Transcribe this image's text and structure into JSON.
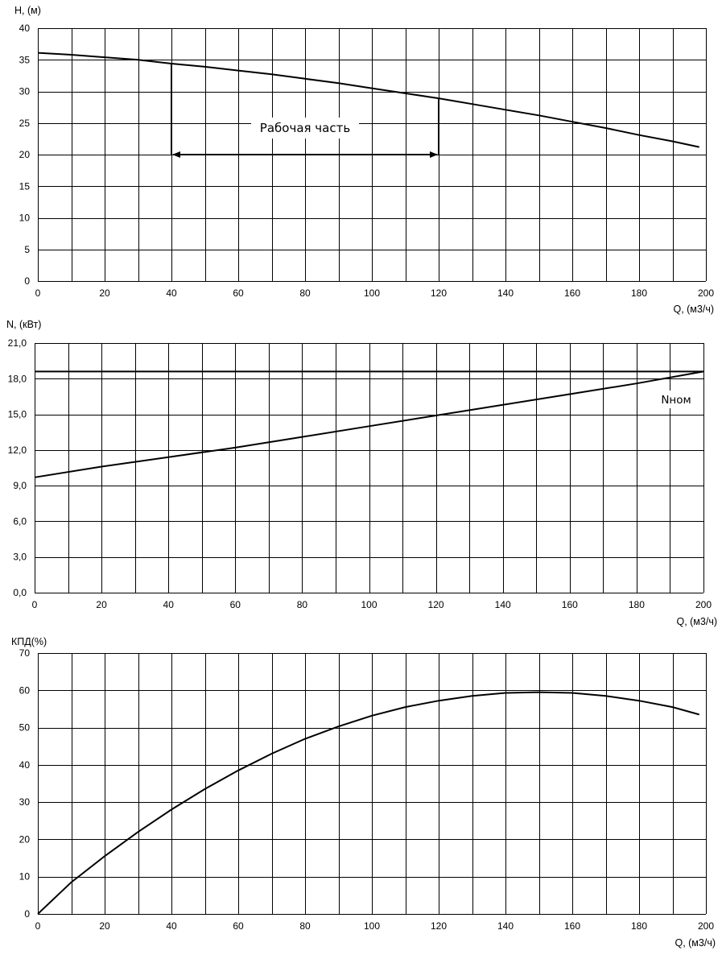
{
  "chart_data": [
    {
      "type": "line",
      "ylabel": "H, (м)",
      "xlabel": "Q, (м3/ч)",
      "xlim": [
        0,
        200
      ],
      "ylim": [
        0,
        40
      ],
      "xticks": [
        "0",
        "20",
        "40",
        "60",
        "80",
        "100",
        "120",
        "140",
        "160",
        "180",
        "200"
      ],
      "yticks": [
        "0",
        "5",
        "10",
        "15",
        "20",
        "25",
        "30",
        "35",
        "40"
      ],
      "grid": true,
      "series": [
        {
          "x": [
            0,
            10,
            20,
            30,
            40,
            50,
            60,
            70,
            80,
            90,
            100,
            110,
            120,
            130,
            140,
            150,
            160,
            170,
            180,
            190,
            198
          ],
          "y": [
            36.1,
            35.8,
            35.4,
            35.0,
            34.4,
            33.9,
            33.3,
            32.7,
            32.0,
            31.3,
            30.5,
            29.7,
            28.9,
            28.0,
            27.1,
            26.2,
            25.2,
            24.2,
            23.1,
            22.1,
            21.2
          ]
        }
      ],
      "annotations": {
        "working_range_label": "Рабочая часть",
        "working_range_q": [
          40,
          120
        ],
        "working_range_h_arrow": 20
      }
    },
    {
      "type": "line",
      "ylabel": "N, (кВт)",
      "xlabel": "Q, (м3/ч)",
      "xlim": [
        0,
        200
      ],
      "ylim": [
        0,
        21
      ],
      "xticks": [
        "0",
        "20",
        "40",
        "60",
        "80",
        "100",
        "120",
        "140",
        "160",
        "180",
        "200"
      ],
      "yticks": [
        "0,0",
        "3,0",
        "6,0",
        "9,0",
        "12,0",
        "15,0",
        "18,0",
        "21,0"
      ],
      "grid": true,
      "series": [
        {
          "x": [
            0,
            20,
            40,
            60,
            80,
            100,
            120,
            140,
            160,
            180,
            200
          ],
          "y": [
            9.7,
            10.6,
            11.4,
            12.2,
            13.1,
            14.0,
            14.9,
            15.8,
            16.7,
            17.6,
            18.6
          ]
        }
      ],
      "annotations": {
        "nominal_label": "Nном",
        "nominal_value": 18.6
      }
    },
    {
      "type": "line",
      "ylabel": "КПД(%)",
      "xlabel": "Q, (м3/ч)",
      "xlim": [
        0,
        200
      ],
      "ylim": [
        0,
        70
      ],
      "xticks": [
        "0",
        "20",
        "40",
        "60",
        "80",
        "100",
        "120",
        "140",
        "160",
        "180",
        "200"
      ],
      "yticks": [
        "0",
        "10",
        "20",
        "30",
        "40",
        "50",
        "60",
        "70"
      ],
      "grid": true,
      "series": [
        {
          "x": [
            0,
            10,
            20,
            30,
            40,
            50,
            60,
            70,
            80,
            90,
            100,
            110,
            120,
            130,
            140,
            150,
            160,
            170,
            180,
            190,
            198
          ],
          "y": [
            0,
            8.5,
            15.5,
            22.0,
            28.0,
            33.5,
            38.5,
            43.0,
            47.0,
            50.3,
            53.2,
            55.5,
            57.2,
            58.5,
            59.3,
            59.5,
            59.3,
            58.5,
            57.2,
            55.5,
            53.5
          ]
        }
      ]
    }
  ]
}
